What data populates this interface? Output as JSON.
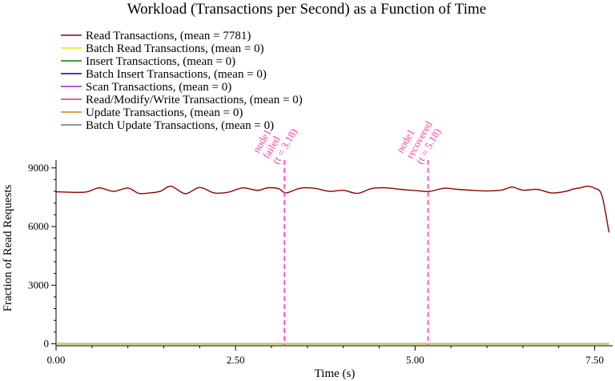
{
  "chart_data": {
    "type": "line",
    "title": "Workload (Transactions per Second) as a Function of Time",
    "xlabel": "Time (s)",
    "ylabel": "Fraction of Read Requests",
    "xlim": [
      0,
      7.75
    ],
    "ylim": [
      -100,
      9400
    ],
    "xticks": [
      0,
      2.5,
      5,
      7.5
    ],
    "xtick_labels": [
      "0.00",
      "2.50",
      "5.00",
      "7.50"
    ],
    "yticks": [
      0,
      3000,
      6000,
      9000
    ],
    "ytick_labels": [
      "0",
      "3000",
      "6000",
      "9000"
    ],
    "grid": false,
    "legend": "top-left",
    "series": [
      {
        "name": "Read Transactions, (mean = 7781)",
        "color": "#8b0000",
        "x": [
          0,
          0.4,
          0.6,
          0.8,
          1.0,
          1.15,
          1.3,
          1.45,
          1.6,
          1.8,
          2.0,
          2.2,
          2.4,
          2.6,
          2.8,
          2.95,
          3.1,
          3.2,
          3.4,
          3.6,
          3.8,
          4.0,
          4.2,
          4.4,
          4.6,
          4.8,
          5.0,
          5.2,
          5.4,
          5.6,
          5.8,
          6.0,
          6.2,
          6.35,
          6.5,
          6.7,
          6.9,
          7.1,
          7.2,
          7.3,
          7.4,
          7.5,
          7.6,
          7.7
        ],
        "y": [
          7780,
          7760,
          7980,
          7800,
          7970,
          7700,
          7720,
          7800,
          8060,
          7680,
          8000,
          7720,
          7760,
          7980,
          7850,
          7980,
          7940,
          7720,
          7960,
          7960,
          7800,
          7850,
          7700,
          7950,
          7980,
          7900,
          7840,
          7800,
          7960,
          7900,
          7850,
          7820,
          7860,
          8020,
          7860,
          7900,
          7720,
          7800,
          7920,
          7980,
          8060,
          7960,
          7600,
          5700
        ]
      },
      {
        "name": "Batch Read Transactions, (mean = 0)",
        "color": "#e5e500",
        "x": [
          0,
          7.7
        ],
        "y": [
          0,
          0
        ]
      },
      {
        "name": "Insert Transactions, (mean = 0)",
        "color": "#008000",
        "x": [
          0,
          7.7
        ],
        "y": [
          0,
          0
        ]
      },
      {
        "name": "Batch Insert Transactions, (mean = 0)",
        "color": "#0000a0",
        "x": [
          0,
          7.7
        ],
        "y": [
          0,
          0
        ]
      },
      {
        "name": "Scan Transactions, (mean = 0)",
        "color": "#a020c0",
        "x": [
          0,
          7.7
        ],
        "y": [
          0,
          0
        ]
      },
      {
        "name": "Read/Modify/Write Transactions, (mean = 0)",
        "color": "#e0304a",
        "x": [
          0,
          7.7
        ],
        "y": [
          0,
          0
        ]
      },
      {
        "name": "Update Transactions, (mean = 0)",
        "color": "#e08020",
        "x": [
          0,
          7.7
        ],
        "y": [
          0,
          0
        ]
      },
      {
        "name": "Batch Update Transactions, (mean = 0)",
        "color": "#707070",
        "x": [
          0,
          7.7
        ],
        "y": [
          0,
          0
        ]
      }
    ],
    "annotations": [
      {
        "x": 3.18,
        "lines": [
          "node1",
          "failed",
          "(t = 3.18)"
        ],
        "color": "#ff3fa7"
      },
      {
        "x": 5.18,
        "lines": [
          "node1",
          "recovered",
          "(t = 5.18)"
        ],
        "color": "#ff3fa7"
      }
    ]
  }
}
